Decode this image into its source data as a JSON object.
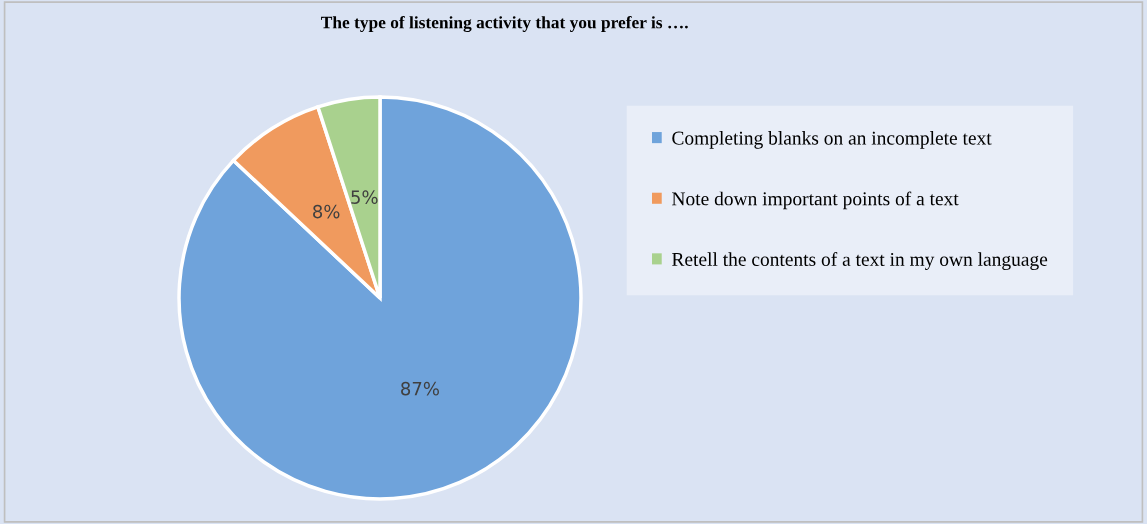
{
  "chart_data": {
    "type": "pie",
    "title": "The type of listening activity that you prefer is ….",
    "categories": [
      "Completing blanks on an incomplete text",
      "Note down important points of a text",
      "Retell the contents of a text in my own language"
    ],
    "values": [
      87,
      8,
      5
    ],
    "colors": [
      "#6fa3db",
      "#f09a5e",
      "#a9d18e"
    ],
    "value_labels": [
      "87%",
      "8%",
      "5%"
    ],
    "legend": "right"
  }
}
